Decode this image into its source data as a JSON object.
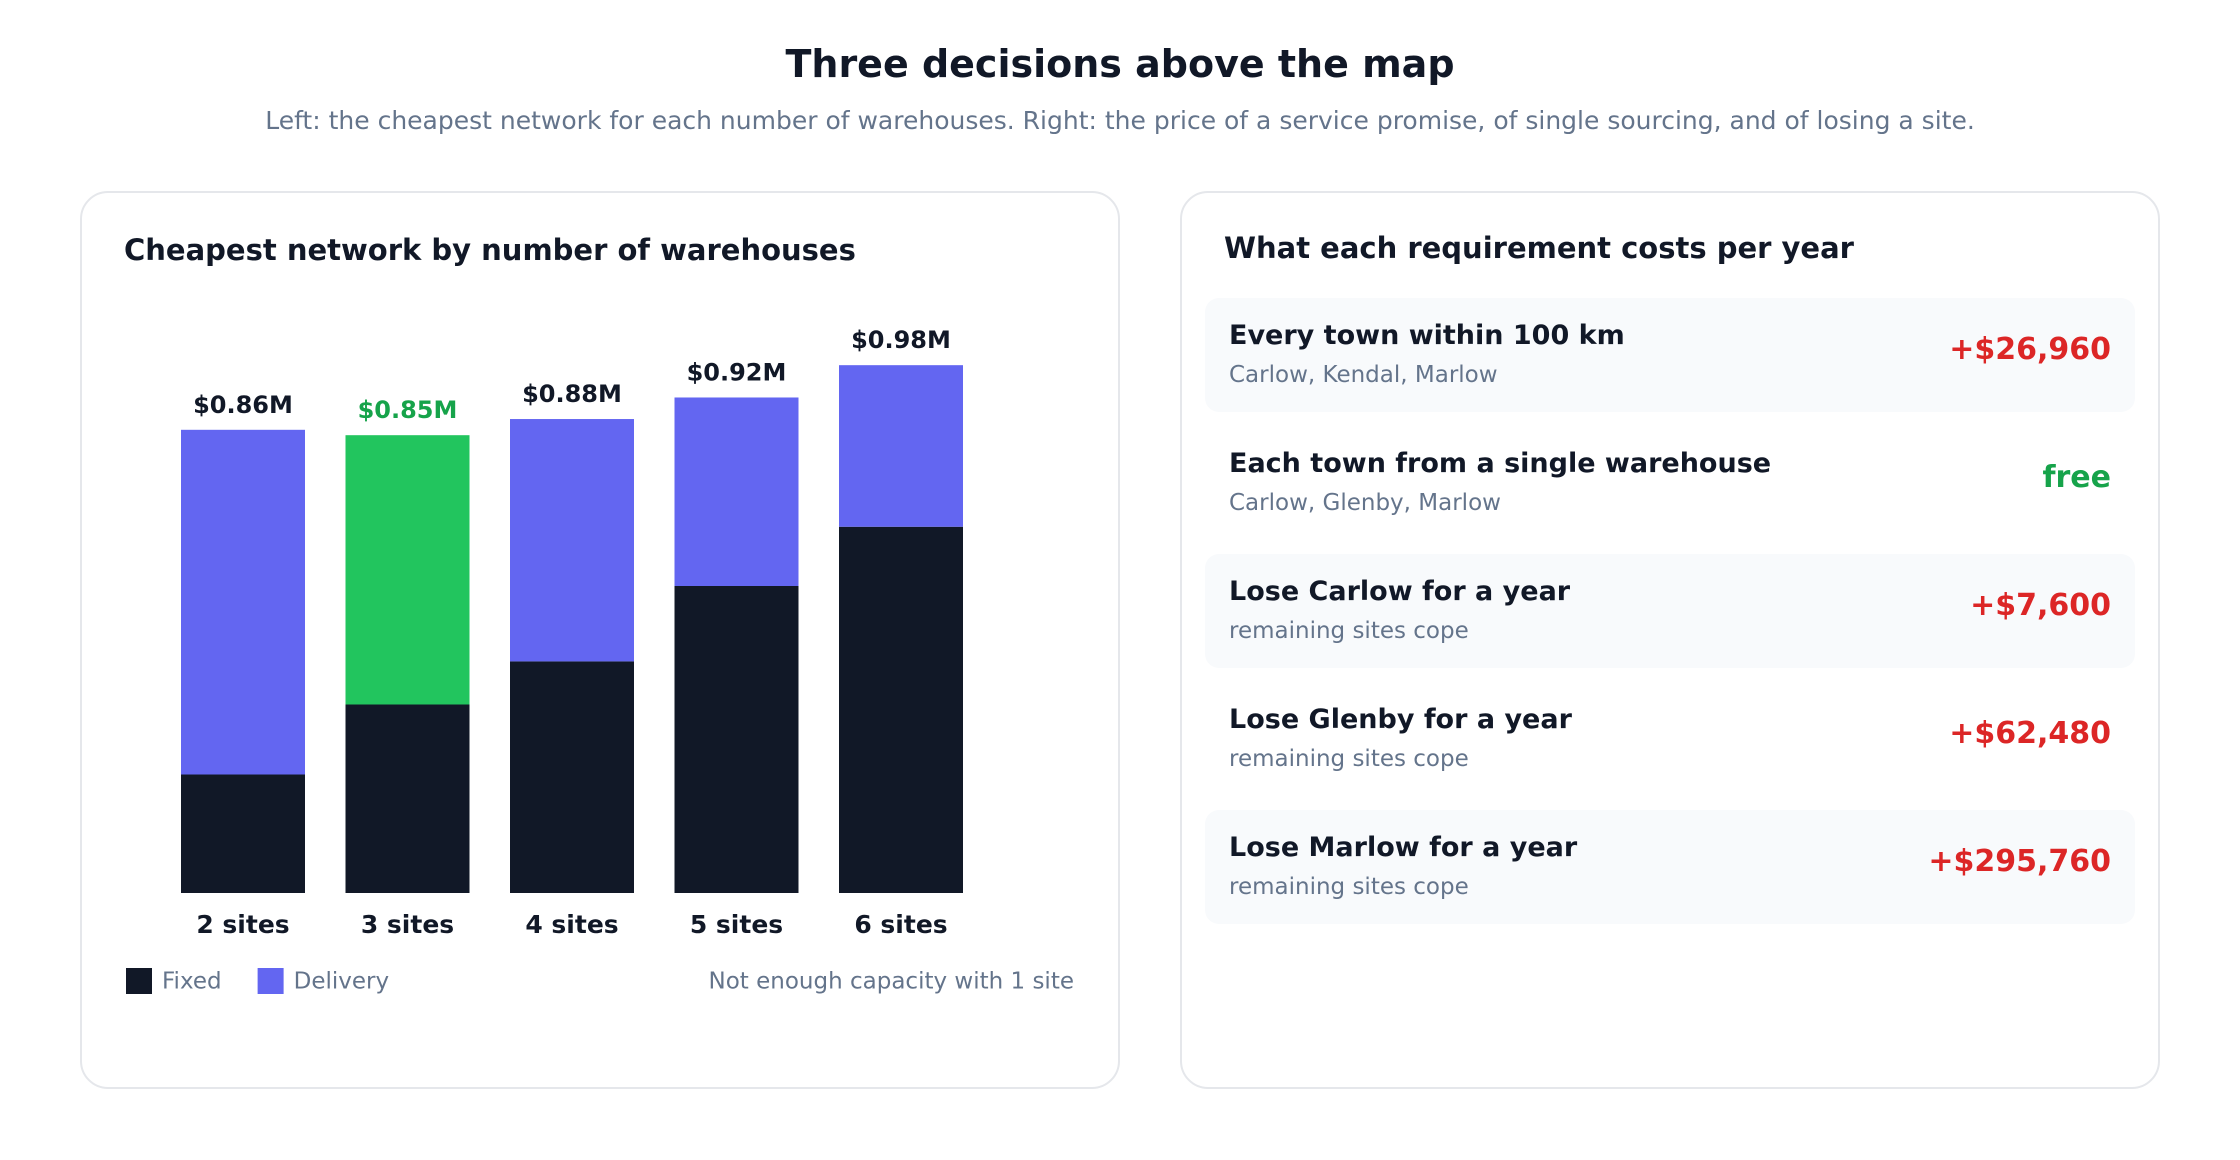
{
  "header": {
    "title": "Three decisions above the map",
    "subtitle": "Left: the cheapest network for each number of warehouses. Right: the price of a service promise, of single sourcing, and of losing a site."
  },
  "chart_data": {
    "type": "stacked-bar",
    "title": "Cheapest network by number of warehouses",
    "categories": [
      "2 sites",
      "3 sites",
      "4 sites",
      "5 sites",
      "6 sites"
    ],
    "series": [
      {
        "name": "Fixed",
        "color": "#111827",
        "values": [
          0.22,
          0.35,
          0.43,
          0.57,
          0.68
        ]
      },
      {
        "name": "Delivery",
        "color": "#6366f1",
        "values": [
          0.64,
          0.5,
          0.45,
          0.35,
          0.3
        ]
      }
    ],
    "totals": {
      "values": [
        0.86,
        0.85,
        0.88,
        0.92,
        0.98
      ],
      "value_labels": [
        "$0.86M",
        "$0.85M",
        "$0.88M",
        "$0.92M",
        "$0.98M"
      ],
      "color": "#111827"
    },
    "highlight": {
      "index": 1,
      "color": "#22c55e",
      "label_color": "#16a34a"
    },
    "annotation": "Not enough capacity with 1 site",
    "legend": "bottom-left"
  },
  "requirements": {
    "title": "What each requirement costs per year",
    "items": [
      {
        "title": "Every town within 100 km",
        "detail": "Carlow, Kendal, Marlow",
        "cost": "+$26,960",
        "color": "#dc2626"
      },
      {
        "title": "Each town from a single warehouse",
        "detail": "Carlow, Glenby, Marlow",
        "cost": "free",
        "color": "#16a34a"
      },
      {
        "title": "Lose Carlow for a year",
        "detail": "remaining sites cope",
        "cost": "+$7,600",
        "color": "#dc2626"
      },
      {
        "title": "Lose Glenby for a year",
        "detail": "remaining sites cope",
        "cost": "+$62,480",
        "color": "#dc2626"
      },
      {
        "title": "Lose Marlow for a year",
        "detail": "remaining sites cope",
        "cost": "+$295,760",
        "color": "#dc2626"
      }
    ]
  }
}
